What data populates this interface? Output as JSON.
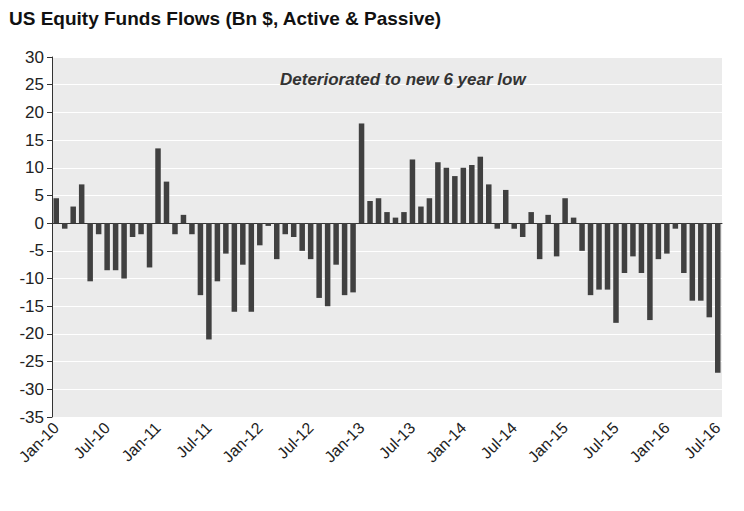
{
  "chart_data": {
    "type": "bar",
    "title": "US Equity Funds Flows (Bn $, Active & Passive)",
    "annotation": "Deteriorated to new 6 year low",
    "categories": [
      "Jan-10",
      null,
      null,
      null,
      null,
      null,
      "Jul-10",
      null,
      null,
      null,
      null,
      null,
      "Jan-11",
      null,
      null,
      null,
      null,
      null,
      "Jul-11",
      null,
      null,
      null,
      null,
      null,
      "Jan-12",
      null,
      null,
      null,
      null,
      null,
      "Jul-12",
      null,
      null,
      null,
      null,
      null,
      "Jan-13",
      null,
      null,
      null,
      null,
      null,
      "Jul-13",
      null,
      null,
      null,
      null,
      null,
      "Jan-14",
      null,
      null,
      null,
      null,
      null,
      "Jul-14",
      null,
      null,
      null,
      null,
      null,
      "Jan-15",
      null,
      null,
      null,
      null,
      null,
      "Jul-15",
      null,
      null,
      null,
      null,
      null,
      "Jan-16",
      null,
      null,
      null,
      null,
      null,
      "Jul-16"
    ],
    "values": [
      4.5,
      -1,
      3,
      7,
      -10.5,
      -2,
      -8.5,
      -8.5,
      -10,
      -2.5,
      -2,
      -8,
      13.5,
      7.5,
      -2,
      1.5,
      -2,
      -13,
      -21,
      -10.5,
      -5.5,
      -16,
      -7.5,
      -16,
      -4,
      -0.5,
      -6.5,
      -2,
      -2.5,
      -5,
      -6.5,
      -13.5,
      -15,
      -7.5,
      -13,
      -12.5,
      18,
      4,
      4.5,
      2,
      1,
      2,
      11.5,
      3,
      4.5,
      11,
      10,
      8.5,
      10,
      10.5,
      12,
      7,
      -1,
      6,
      -1,
      -2.5,
      2,
      -6.5,
      1.5,
      -6,
      4.5,
      1,
      -5,
      -13,
      -12,
      -12,
      -18,
      -9,
      -6,
      -9,
      -17.5,
      -6.5,
      -5.5,
      -1,
      -9,
      -14,
      -14,
      -17,
      -27
    ],
    "color": "#404040",
    "ylim": [
      -35,
      30
    ],
    "yticks": [
      -35,
      -30,
      -25,
      -20,
      -15,
      -10,
      -5,
      0,
      5,
      10,
      15,
      20,
      25,
      30
    ],
    "grid": true
  }
}
